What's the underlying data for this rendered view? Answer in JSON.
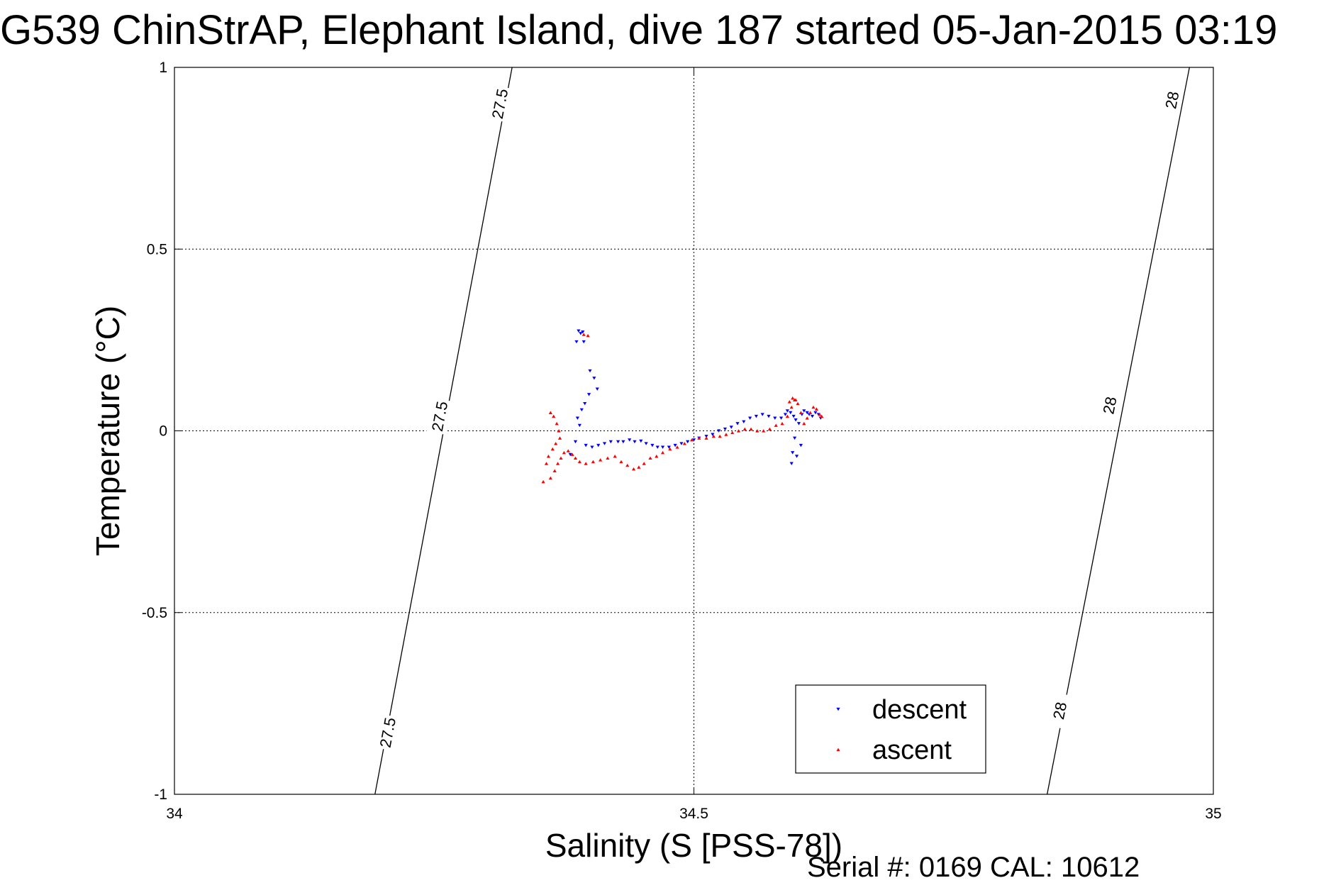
{
  "title": "G539 ChinStrAP, Elephant Island, dive 187 started 05-Jan-2015 03:19",
  "footer": "Serial #: 0169 CAL: 10612",
  "chart_data": {
    "type": "scatter",
    "title": "G539 ChinStrAP, Elephant Island, dive 187 started 05-Jan-2015 03:19",
    "xlabel": "Salinity (S [PSS-78])",
    "ylabel": "Temperature (°C)",
    "xlim": [
      34,
      35
    ],
    "ylim": [
      -1,
      1
    ],
    "xticks": [
      34,
      34.5,
      35
    ],
    "xtick_labels": [
      "34",
      "34.5",
      "35"
    ],
    "yticks": [
      -1,
      -0.5,
      0,
      0.5,
      1
    ],
    "ytick_labels": [
      "-1",
      "-0.5",
      "0",
      "0.5",
      "1"
    ],
    "grid": true,
    "legend_position": "bottom-right",
    "colors": {
      "descent": "#0000ff",
      "ascent": "#ff0000",
      "isopycnal": "#000000"
    },
    "isopycnals": [
      {
        "label": "27.5",
        "start": [
          34.193,
          -1.0
        ],
        "end": [
          34.325,
          1.0
        ],
        "label_positions": [
          [
            34.205,
            -0.83
          ],
          [
            34.255,
            0.04
          ],
          [
            34.313,
            0.9
          ]
        ]
      },
      {
        "label": "28",
        "start": [
          34.84,
          -1.0
        ],
        "end": [
          34.977,
          1.0
        ],
        "label_positions": [
          [
            34.852,
            -0.77
          ],
          [
            34.9,
            0.07
          ],
          [
            34.96,
            0.91
          ]
        ]
      }
    ],
    "series": [
      {
        "name": "descent",
        "marker": "triangle-down",
        "x": [
          34.389,
          34.391,
          34.393,
          34.387,
          34.394,
          34.4,
          34.404,
          34.407,
          34.399,
          34.395,
          34.392,
          34.388,
          34.39,
          34.386,
          34.381,
          34.396,
          34.402,
          34.408,
          34.414,
          34.42,
          34.427,
          34.432,
          34.438,
          34.443,
          34.449,
          34.454,
          34.46,
          34.465,
          34.47,
          34.476,
          34.482,
          34.488,
          34.494,
          34.5,
          34.505,
          34.512,
          34.518,
          34.524,
          34.53,
          34.536,
          34.542,
          34.548,
          34.554,
          34.56,
          34.566,
          34.572,
          34.578,
          34.584,
          34.588,
          34.59,
          34.593,
          34.596,
          34.598,
          34.601,
          34.604,
          34.606,
          34.609,
          34.611,
          34.614,
          34.617,
          34.62,
          34.622,
          34.597,
          34.595,
          34.594,
          34.599,
          34.603
        ],
        "y": [
          0.275,
          0.268,
          0.272,
          0.245,
          0.245,
          0.165,
          0.145,
          0.115,
          0.1,
          0.075,
          0.058,
          0.035,
          0.015,
          -0.03,
          -0.065,
          -0.04,
          -0.045,
          -0.04,
          -0.035,
          -0.03,
          -0.03,
          -0.03,
          -0.025,
          -0.03,
          -0.028,
          -0.035,
          -0.04,
          -0.045,
          -0.045,
          -0.045,
          -0.04,
          -0.035,
          -0.03,
          -0.025,
          -0.02,
          -0.015,
          -0.01,
          0.0,
          0.005,
          0.01,
          0.02,
          0.025,
          0.035,
          0.04,
          0.045,
          0.04,
          0.035,
          0.035,
          0.045,
          0.055,
          0.05,
          0.04,
          0.03,
          0.02,
          0.045,
          0.055,
          0.05,
          0.045,
          0.04,
          0.05,
          0.045,
          0.035,
          -0.02,
          -0.06,
          -0.09,
          -0.07,
          -0.04
        ]
      },
      {
        "name": "ascent",
        "marker": "triangle-up",
        "x": [
          34.394,
          34.398,
          34.362,
          34.365,
          34.368,
          34.37,
          34.371,
          34.367,
          34.364,
          34.36,
          34.358,
          34.355,
          34.362,
          34.366,
          34.369,
          34.372,
          34.375,
          34.379,
          34.383,
          34.386,
          34.39,
          34.396,
          34.403,
          34.41,
          34.417,
          34.424,
          34.43,
          34.436,
          34.442,
          34.447,
          34.452,
          34.458,
          34.464,
          34.47,
          34.477,
          34.484,
          34.491,
          34.498,
          34.505,
          34.512,
          34.519,
          34.525,
          34.531,
          34.537,
          34.543,
          34.549,
          34.555,
          34.561,
          34.567,
          34.573,
          34.579,
          34.585,
          34.59,
          34.594,
          34.597,
          34.6,
          34.603,
          34.606,
          34.609,
          34.612,
          34.615,
          34.618,
          34.621,
          34.623,
          34.592,
          34.595,
          34.598
        ],
        "y": [
          0.265,
          0.262,
          0.05,
          0.04,
          0.02,
          0.0,
          -0.02,
          -0.035,
          -0.05,
          -0.07,
          -0.09,
          -0.14,
          -0.13,
          -0.11,
          -0.09,
          -0.075,
          -0.06,
          -0.055,
          -0.065,
          -0.075,
          -0.085,
          -0.09,
          -0.085,
          -0.08,
          -0.075,
          -0.07,
          -0.085,
          -0.095,
          -0.105,
          -0.1,
          -0.09,
          -0.075,
          -0.07,
          -0.06,
          -0.05,
          -0.045,
          -0.035,
          -0.025,
          -0.02,
          -0.02,
          -0.015,
          -0.015,
          -0.01,
          -0.005,
          0.0,
          0.005,
          0.005,
          0.0,
          0.0,
          0.005,
          0.015,
          0.02,
          0.04,
          0.065,
          0.085,
          0.075,
          0.05,
          0.02,
          0.035,
          0.05,
          0.065,
          0.06,
          0.045,
          0.04,
          0.08,
          0.09,
          0.085
        ]
      }
    ]
  }
}
